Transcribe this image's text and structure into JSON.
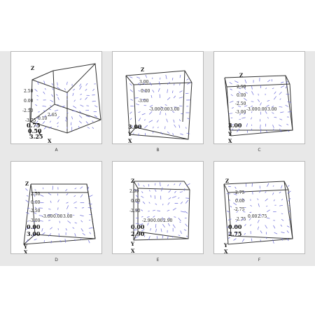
{
  "colors": {
    "background": "#e8e8e8",
    "panel": "#ffffff",
    "edge": "#333333",
    "vector": "#6a6ad8"
  },
  "panels": [
    {
      "caption": "A",
      "axis_letters": [
        "Z",
        "Y",
        "X"
      ],
      "ticks": [
        "2.50",
        "0.00",
        "-2.50",
        "-3.75",
        "0.10",
        "2.65",
        "0.75",
        "0.50",
        "3.25"
      ]
    },
    {
      "caption": "B",
      "axis_letters": [
        "Z",
        "Y",
        "X"
      ],
      "ticks": [
        "3.00",
        "0.00",
        "-3.00",
        "-3.00",
        "0.00",
        "3.00",
        "3.00"
      ]
    },
    {
      "caption": "C",
      "axis_letters": [
        "Z",
        "Y",
        "X"
      ],
      "ticks": [
        "2.50",
        "0.00",
        "-2.50",
        "-3.00",
        "-3.00",
        "0.00",
        "3.00",
        "3.00"
      ]
    },
    {
      "caption": "D",
      "axis_letters": [
        "Z",
        "Y",
        "X"
      ],
      "ticks": [
        "2.50",
        "0.00",
        "-2.50",
        "-3.00",
        "-3.00",
        "0.00",
        "3.00",
        "0.00",
        "3.00"
      ]
    },
    {
      "caption": "E",
      "axis_letters": [
        "Z",
        "Y",
        "X"
      ],
      "ticks": [
        "2.90",
        "0.00",
        "-2.90",
        "-2.90",
        "0.00",
        "2.90",
        "0.00",
        "2.90"
      ]
    },
    {
      "caption": "F",
      "axis_letters": [
        "Z",
        "Y",
        "X"
      ],
      "ticks": [
        "2.75",
        "0.00",
        "-2.75",
        "-2.75",
        "0.00",
        "2.75",
        "0.00",
        "2.75"
      ]
    }
  ]
}
